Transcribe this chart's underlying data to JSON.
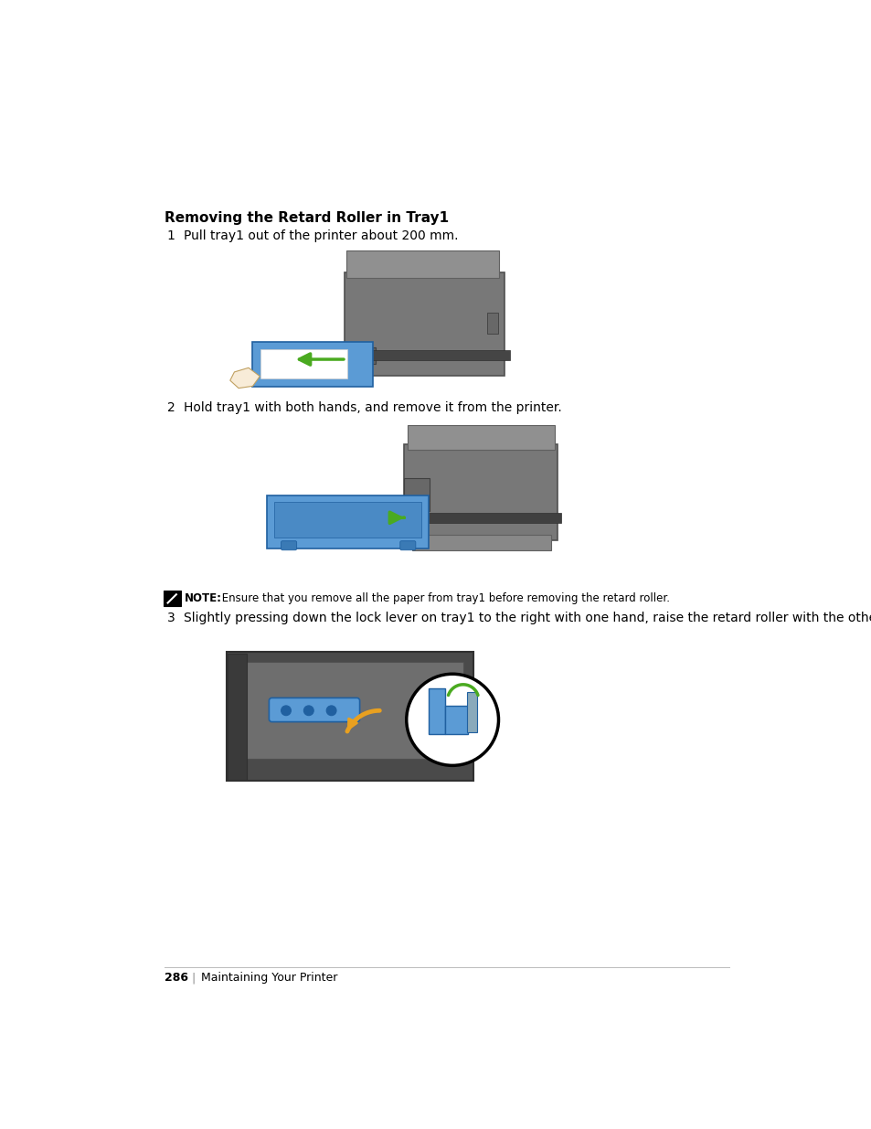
{
  "page_background": "#ffffff",
  "title": "Removing the Retard Roller in Tray1",
  "step1_num": "1",
  "step1_text": "Pull tray1 out of the printer about 200 mm.",
  "step2_num": "2",
  "step2_text": "Hold tray1 with both hands, and remove it from the printer.",
  "step3_num": "3",
  "step3_text": "Slightly pressing down the lock lever on tray1 to the right with one hand, raise the retard roller with the other hand.",
  "note_bold": "NOTE:",
  "note_text": " Ensure that you remove all the paper from tray1 before removing the retard roller.",
  "footer_page": "286",
  "footer_sep": "|",
  "footer_text": "Maintaining Your Printer",
  "text_color": "#000000",
  "gray_dark": "#555555",
  "gray_mid": "#7a7a7a",
  "gray_light": "#aaaaaa",
  "blue": "#5B9BD5",
  "blue_dark": "#2060A0",
  "blue_mid": "#4A8AC5",
  "green_arrow": "#4AAA20",
  "orange_arrow": "#E8A020",
  "white": "#ffffff",
  "black": "#000000"
}
